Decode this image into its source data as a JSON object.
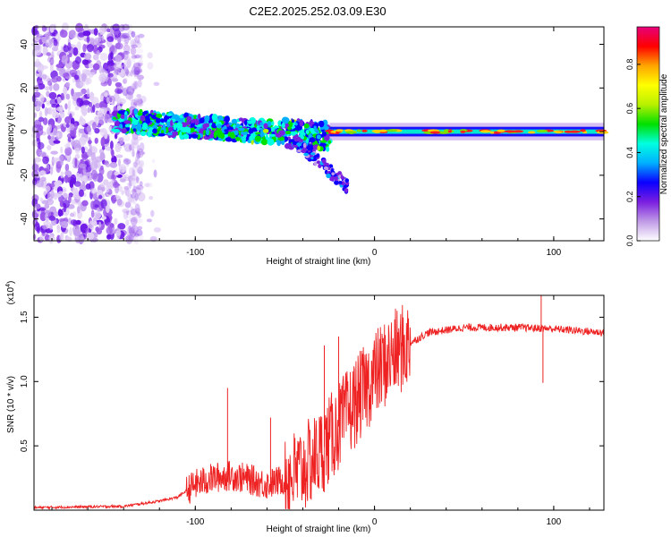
{
  "title": "C2E2.2025.252.03.09.E30",
  "chart_data": [
    {
      "type": "heatmap",
      "xlabel": "Height of straight line (km)",
      "ylabel": "Frequency (Hz)",
      "xlim": [
        -190,
        128
      ],
      "ylim": [
        -50,
        48
      ],
      "xticks": [
        -100,
        0,
        100
      ],
      "yticks": [
        -40,
        -20,
        0,
        20,
        40
      ],
      "colorbar": {
        "label": "Normalized spectral amplitude",
        "range": [
          0,
          0.97
        ],
        "ticks": [
          0.0,
          0.2,
          0.4,
          0.6,
          0.8
        ],
        "colors": [
          "#ffffff",
          "#c09ae6",
          "#7a1ee0",
          "#0a00ff",
          "#00b0ff",
          "#00ffe0",
          "#00e000",
          "#b8f000",
          "#ffff00",
          "#ffa500",
          "#ff0000",
          "#e6007a"
        ]
      },
      "features": {
        "noise_region_x": [
          -190,
          -130
        ],
        "cluster_region_x": [
          -145,
          -25
        ],
        "tail_x": [
          -45,
          -15
        ],
        "steady_line_x": [
          -25,
          128
        ],
        "steady_line_freq": 0
      }
    },
    {
      "type": "line",
      "xlabel": "Height of straight line (km)",
      "ylabel": "SNR (10 * v/v)",
      "scale_label": "(x10^4)",
      "xlim": [
        -190,
        128
      ],
      "ylim": [
        0,
        1.67
      ],
      "xticks": [
        -100,
        0,
        100
      ],
      "yticks": [
        0.5,
        1.0,
        1.5
      ],
      "ytick_labels": [
        "0.5",
        "1.0",
        "1.5"
      ],
      "series": [
        {
          "name": "SNR",
          "color": "#ee2222",
          "profile": [
            [
              -190,
              0.02
            ],
            [
              -140,
              0.03
            ],
            [
              -120,
              0.07
            ],
            [
              -110,
              0.1
            ],
            [
              -100,
              0.2
            ],
            [
              -90,
              0.25
            ],
            [
              -80,
              0.27
            ],
            [
              -70,
              0.24
            ],
            [
              -60,
              0.2
            ],
            [
              -50,
              0.24
            ],
            [
              -40,
              0.32
            ],
            [
              -30,
              0.45
            ],
            [
              -20,
              0.65
            ],
            [
              -10,
              0.85
            ],
            [
              0,
              1.05
            ],
            [
              10,
              1.2
            ],
            [
              20,
              1.3
            ],
            [
              30,
              1.38
            ],
            [
              50,
              1.42
            ],
            [
              80,
              1.42
            ],
            [
              100,
              1.41
            ],
            [
              128,
              1.38
            ]
          ],
          "spikes": [
            [
              -82,
              0.95
            ],
            [
              -58,
              0.72
            ],
            [
              -28,
              1.28
            ],
            [
              -20,
              1.35
            ],
            [
              20,
              1.3
            ],
            [
              93,
              1.67
            ],
            [
              94,
              0.99
            ]
          ]
        }
      ]
    }
  ]
}
